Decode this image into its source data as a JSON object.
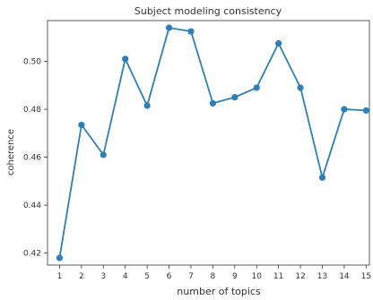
{
  "chart_data": {
    "type": "line",
    "title": "Subject modeling consistency",
    "xlabel": "number of topics",
    "ylabel": "coherence",
    "x": [
      1,
      2,
      3,
      4,
      5,
      6,
      7,
      8,
      9,
      10,
      11,
      12,
      13,
      14,
      15
    ],
    "series": [
      {
        "values": [
          0.418,
          0.4735,
          0.461,
          0.501,
          0.4815,
          0.514,
          0.5125,
          0.4825,
          0.485,
          0.489,
          0.5075,
          0.489,
          0.4515,
          0.48,
          0.4795
        ]
      }
    ],
    "xticks": [
      "1",
      "2",
      "3",
      "4",
      "5",
      "6",
      "7",
      "8",
      "9",
      "10",
      "11",
      "12",
      "13",
      "14",
      "15"
    ],
    "yticks": [
      "0.42",
      "0.44",
      "0.46",
      "0.48",
      "0.50"
    ],
    "ytick_values": [
      0.42,
      0.44,
      0.46,
      0.48,
      0.5
    ],
    "ylim": [
      0.415,
      0.517
    ],
    "xlim": [
      0.45,
      15.15
    ],
    "grid": false,
    "color": "#2e7fb5"
  }
}
